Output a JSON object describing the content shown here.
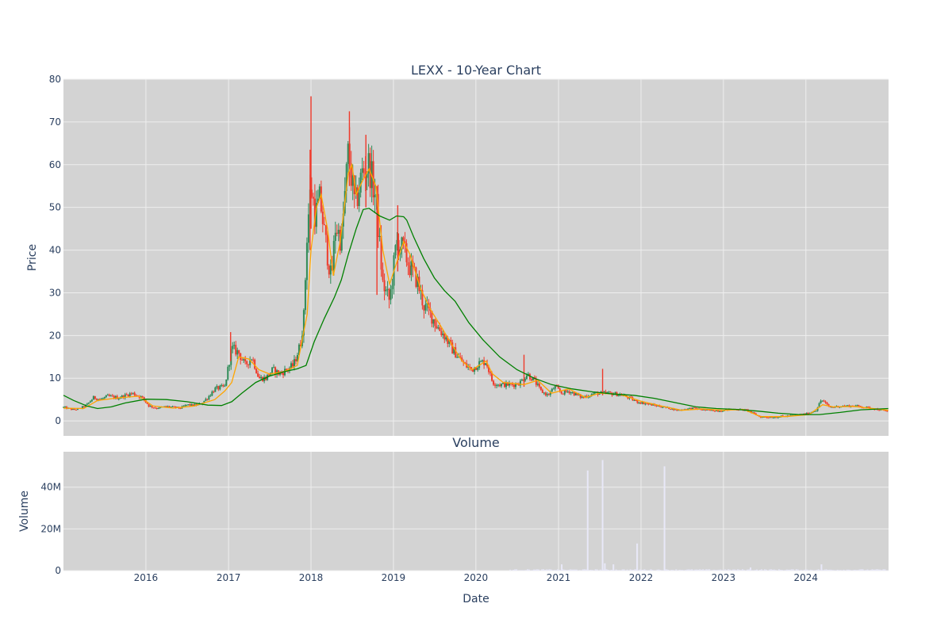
{
  "chart_data": {
    "type": "candlestick",
    "title": "LEXX - 10-Year Chart",
    "colors": {
      "plot_bg": "#d3d3d3",
      "grid": "#eeeeee",
      "increasing": "#2e8b57",
      "decreasing": "#ef3b2c",
      "ma_short": "#ffa500",
      "ma_long": "#008000",
      "volume": "#e8e8f8",
      "text": "#2a3f5f"
    },
    "price_panel": {
      "ylabel": "Price",
      "ylim": [
        -3.5,
        80
      ],
      "yticks": [
        0,
        10,
        20,
        30,
        40,
        50,
        60,
        70,
        80
      ]
    },
    "volume_panel": {
      "title": "Volume",
      "ylabel": "Volume",
      "ylim": [
        0,
        57000000
      ],
      "yticks": [
        {
          "value": 0,
          "label": "0"
        },
        {
          "value": 20000000,
          "label": "20M"
        },
        {
          "value": 40000000,
          "label": "40M"
        }
      ]
    },
    "xaxis": {
      "xlabel": "Date",
      "range": [
        "2015-01-01",
        "2025-01-01"
      ],
      "ticks": [
        {
          "date": "2016-01-01",
          "label": "2016"
        },
        {
          "date": "2017-01-01",
          "label": "2017"
        },
        {
          "date": "2018-01-01",
          "label": "2018"
        },
        {
          "date": "2019-01-01",
          "label": "2019"
        },
        {
          "date": "2020-01-01",
          "label": "2020"
        },
        {
          "date": "2021-01-01",
          "label": "2021"
        },
        {
          "date": "2022-01-01",
          "label": "2022"
        },
        {
          "date": "2023-01-01",
          "label": "2023"
        },
        {
          "date": "2024-01-01",
          "label": "2024"
        }
      ]
    },
    "price_path": [
      [
        "2015-01-01",
        3.2
      ],
      [
        "2015-02-15",
        2.6
      ],
      [
        "2015-03-15",
        2.9
      ],
      [
        "2015-04-15",
        3.8
      ],
      [
        "2015-05-15",
        5.5
      ],
      [
        "2015-06-15",
        5.0
      ],
      [
        "2015-07-15",
        5.8
      ],
      [
        "2015-09-01",
        5.4
      ],
      [
        "2015-11-01",
        6.5
      ],
      [
        "2015-12-15",
        5.5
      ],
      [
        "2016-01-15",
        3.5
      ],
      [
        "2016-02-15",
        3.0
      ],
      [
        "2016-04-01",
        3.4
      ],
      [
        "2016-06-01",
        3.0
      ],
      [
        "2016-07-01",
        3.8
      ],
      [
        "2016-08-01",
        3.6
      ],
      [
        "2016-09-01",
        4.0
      ],
      [
        "2016-10-01",
        5.5
      ],
      [
        "2016-11-01",
        7.5
      ],
      [
        "2016-12-15",
        8.0
      ],
      [
        "2017-01-15",
        17.0
      ],
      [
        "2017-02-15",
        16.0
      ],
      [
        "2017-03-15",
        13.0
      ],
      [
        "2017-04-15",
        15.0
      ],
      [
        "2017-05-15",
        10.0
      ],
      [
        "2017-06-15",
        10.0
      ],
      [
        "2017-07-15",
        12.0
      ],
      [
        "2017-08-15",
        11.0
      ],
      [
        "2017-09-15",
        12.0
      ],
      [
        "2017-10-15",
        13.0
      ],
      [
        "2017-11-15",
        18.0
      ],
      [
        "2017-12-01",
        25.0
      ],
      [
        "2017-12-15",
        45.0
      ],
      [
        "2018-01-01",
        55.0
      ],
      [
        "2018-01-20",
        48.0
      ],
      [
        "2018-02-10",
        52.0
      ],
      [
        "2018-03-01",
        44.0
      ],
      [
        "2018-04-01",
        33.0
      ],
      [
        "2018-04-20",
        46.0
      ],
      [
        "2018-05-15",
        42.0
      ],
      [
        "2018-06-15",
        63.0
      ],
      [
        "2018-07-15",
        50.0
      ],
      [
        "2018-08-15",
        58.0
      ],
      [
        "2018-09-15",
        60.0
      ],
      [
        "2018-10-15",
        52.0
      ],
      [
        "2018-11-15",
        32.0
      ],
      [
        "2018-12-15",
        28.0
      ],
      [
        "2019-01-15",
        42.0
      ],
      [
        "2019-02-15",
        40.0
      ],
      [
        "2019-03-15",
        36.0
      ],
      [
        "2019-04-15",
        33.0
      ],
      [
        "2019-05-15",
        27.0
      ],
      [
        "2019-06-15",
        25.0
      ],
      [
        "2019-07-15",
        22.0
      ],
      [
        "2019-08-15",
        20.0
      ],
      [
        "2019-09-15",
        17.0
      ],
      [
        "2019-10-15",
        15.0
      ],
      [
        "2019-11-15",
        13.0
      ],
      [
        "2019-12-15",
        12.0
      ],
      [
        "2020-01-15",
        13.5
      ],
      [
        "2020-02-15",
        14.0
      ],
      [
        "2020-03-15",
        9.0
      ],
      [
        "2020-04-15",
        8.5
      ],
      [
        "2020-06-15",
        8.5
      ],
      [
        "2020-07-15",
        9.0
      ],
      [
        "2020-08-15",
        11.0
      ],
      [
        "2020-09-15",
        9.5
      ],
      [
        "2020-10-15",
        7.0
      ],
      [
        "2020-11-15",
        6.0
      ],
      [
        "2020-12-15",
        8.0
      ],
      [
        "2021-01-15",
        6.5
      ],
      [
        "2021-02-15",
        7.0
      ],
      [
        "2021-04-15",
        5.5
      ],
      [
        "2021-06-15",
        6.5
      ],
      [
        "2021-08-15",
        6.5
      ],
      [
        "2021-10-15",
        6.0
      ],
      [
        "2021-12-15",
        4.5
      ],
      [
        "2022-02-15",
        3.8
      ],
      [
        "2022-04-15",
        3.2
      ],
      [
        "2022-06-15",
        2.5
      ],
      [
        "2022-08-15",
        3.0
      ],
      [
        "2022-10-15",
        2.5
      ],
      [
        "2022-12-15",
        2.4
      ],
      [
        "2023-02-15",
        2.8
      ],
      [
        "2023-04-15",
        2.5
      ],
      [
        "2023-06-15",
        0.9
      ],
      [
        "2023-08-15",
        0.9
      ],
      [
        "2023-10-15",
        1.2
      ],
      [
        "2023-12-15",
        1.5
      ],
      [
        "2024-01-15",
        1.8
      ],
      [
        "2024-02-15",
        2.5
      ],
      [
        "2024-03-10",
        5.0
      ],
      [
        "2024-04-15",
        3.2
      ],
      [
        "2024-06-15",
        3.5
      ],
      [
        "2024-08-15",
        3.5
      ],
      [
        "2024-10-15",
        3.0
      ],
      [
        "2024-12-31",
        2.2
      ]
    ],
    "ma_short_path": [
      [
        "2015-01-01",
        3.0
      ],
      [
        "2015-04-01",
        2.9
      ],
      [
        "2015-06-01",
        4.8
      ],
      [
        "2015-09-01",
        5.4
      ],
      [
        "2015-12-01",
        5.8
      ],
      [
        "2016-02-01",
        3.5
      ],
      [
        "2016-05-01",
        3.0
      ],
      [
        "2016-08-01",
        3.5
      ],
      [
        "2016-11-01",
        5.0
      ],
      [
        "2016-12-15",
        7.0
      ],
      [
        "2017-01-15",
        9.0
      ],
      [
        "2017-02-15",
        15.0
      ],
      [
        "2017-04-01",
        14.5
      ],
      [
        "2017-05-15",
        12.0
      ],
      [
        "2017-07-01",
        11.0
      ],
      [
        "2017-09-01",
        11.5
      ],
      [
        "2017-11-01",
        13.0
      ],
      [
        "2017-12-15",
        25.0
      ],
      [
        "2018-01-01",
        40.0
      ],
      [
        "2018-01-25",
        50.0
      ],
      [
        "2018-02-15",
        53.0
      ],
      [
        "2018-03-15",
        45.0
      ],
      [
        "2018-04-10",
        34.0
      ],
      [
        "2018-05-10",
        42.0
      ],
      [
        "2018-06-15",
        58.0
      ],
      [
        "2018-07-01",
        60.0
      ],
      [
        "2018-07-20",
        53.0
      ],
      [
        "2018-08-15",
        56.0
      ],
      [
        "2018-09-15",
        59.0
      ],
      [
        "2018-10-15",
        55.0
      ],
      [
        "2018-11-15",
        40.0
      ],
      [
        "2018-12-15",
        32.0
      ],
      [
        "2019-01-15",
        37.0
      ],
      [
        "2019-02-15",
        42.0
      ],
      [
        "2019-03-15",
        39.0
      ],
      [
        "2019-05-01",
        31.0
      ],
      [
        "2019-06-15",
        26.0
      ],
      [
        "2019-08-01",
        22.0
      ],
      [
        "2019-09-15",
        18.0
      ],
      [
        "2019-11-01",
        14.0
      ],
      [
        "2019-12-15",
        12.0
      ],
      [
        "2020-01-15",
        13.0
      ],
      [
        "2020-02-15",
        14.0
      ],
      [
        "2020-03-15",
        11.0
      ],
      [
        "2020-05-01",
        9.0
      ],
      [
        "2020-08-01",
        8.5
      ],
      [
        "2020-10-01",
        9.5
      ],
      [
        "2020-12-01",
        6.5
      ],
      [
        "2021-02-15",
        7.5
      ],
      [
        "2021-05-01",
        5.5
      ],
      [
        "2021-07-01",
        6.5
      ],
      [
        "2021-10-01",
        6.2
      ],
      [
        "2022-01-01",
        4.6
      ],
      [
        "2022-04-01",
        3.5
      ],
      [
        "2022-07-01",
        2.5
      ],
      [
        "2022-10-01",
        2.8
      ],
      [
        "2023-01-01",
        2.5
      ],
      [
        "2023-04-01",
        2.7
      ],
      [
        "2023-06-15",
        1.0
      ],
      [
        "2023-10-01",
        1.0
      ],
      [
        "2024-01-15",
        1.5
      ],
      [
        "2024-03-15",
        3.8
      ],
      [
        "2024-05-01",
        3.3
      ],
      [
        "2024-08-01",
        3.4
      ],
      [
        "2024-12-31",
        2.5
      ]
    ],
    "ma_long_path": [
      [
        "2015-01-01",
        6.0
      ],
      [
        "2015-02-15",
        4.8
      ],
      [
        "2015-04-15",
        3.5
      ],
      [
        "2015-06-01",
        2.9
      ],
      [
        "2015-08-01",
        3.3
      ],
      [
        "2015-10-01",
        4.2
      ],
      [
        "2016-01-01",
        5.1
      ],
      [
        "2016-04-01",
        5.0
      ],
      [
        "2016-07-01",
        4.5
      ],
      [
        "2016-10-01",
        3.7
      ],
      [
        "2016-12-01",
        3.6
      ],
      [
        "2017-01-15",
        4.5
      ],
      [
        "2017-03-01",
        6.5
      ],
      [
        "2017-05-01",
        9.0
      ],
      [
        "2017-07-01",
        10.5
      ],
      [
        "2017-09-01",
        11.5
      ],
      [
        "2017-11-01",
        12.2
      ],
      [
        "2017-12-10",
        13.0
      ],
      [
        "2018-01-15",
        18.5
      ],
      [
        "2018-03-01",
        24.0
      ],
      [
        "2018-04-15",
        29.0
      ],
      [
        "2018-05-15",
        33.0
      ],
      [
        "2018-06-15",
        39.0
      ],
      [
        "2018-07-20",
        45.0
      ],
      [
        "2018-08-20",
        49.5
      ],
      [
        "2018-09-15",
        49.8
      ],
      [
        "2018-11-01",
        48.0
      ],
      [
        "2018-12-15",
        47.0
      ],
      [
        "2019-01-15",
        48.0
      ],
      [
        "2019-02-15",
        47.8
      ],
      [
        "2019-03-01",
        47.0
      ],
      [
        "2019-04-01",
        43.0
      ],
      [
        "2019-05-15",
        38.0
      ],
      [
        "2019-07-01",
        33.5
      ],
      [
        "2019-08-15",
        30.5
      ],
      [
        "2019-10-01",
        28.0
      ],
      [
        "2019-12-01",
        23.0
      ],
      [
        "2020-02-01",
        19.0
      ],
      [
        "2020-04-15",
        15.0
      ],
      [
        "2020-07-01",
        12.0
      ],
      [
        "2020-09-15",
        10.0
      ],
      [
        "2020-12-01",
        8.5
      ],
      [
        "2021-03-01",
        7.5
      ],
      [
        "2021-06-01",
        6.8
      ],
      [
        "2021-09-01",
        6.3
      ],
      [
        "2021-12-01",
        6.0
      ],
      [
        "2022-03-01",
        5.3
      ],
      [
        "2022-06-01",
        4.3
      ],
      [
        "2022-09-01",
        3.3
      ],
      [
        "2022-12-01",
        2.9
      ],
      [
        "2023-03-01",
        2.7
      ],
      [
        "2023-06-01",
        2.3
      ],
      [
        "2023-09-01",
        1.8
      ],
      [
        "2023-12-01",
        1.5
      ],
      [
        "2024-03-01",
        1.5
      ],
      [
        "2024-06-01",
        2.0
      ],
      [
        "2024-09-01",
        2.6
      ],
      [
        "2024-12-31",
        2.9
      ]
    ],
    "price_spikes": [
      {
        "date": "2017-12-28",
        "high": 63.5,
        "low": 40.0
      },
      {
        "date": "2018-01-01",
        "high": 76.0,
        "low": 45.0
      },
      {
        "date": "2018-06-20",
        "high": 72.5,
        "low": 55.0
      },
      {
        "date": "2018-09-01",
        "high": 67.0,
        "low": 50.0
      },
      {
        "date": "2019-01-20",
        "high": 50.5,
        "low": 35.0
      },
      {
        "date": "2017-01-10",
        "high": 20.8,
        "low": 14.0
      },
      {
        "date": "2020-08-01",
        "high": 15.5,
        "low": 8.0
      },
      {
        "date": "2021-07-15",
        "high": 12.2,
        "low": 6.0
      },
      {
        "date": "2018-10-20",
        "high": 55.0,
        "low": 29.5
      }
    ],
    "volume_spikes": [
      {
        "date": "2021-01-15",
        "value": 3000000
      },
      {
        "date": "2021-05-10",
        "value": 48000000
      },
      {
        "date": "2021-07-15",
        "value": 53000000
      },
      {
        "date": "2021-07-25",
        "value": 3500000
      },
      {
        "date": "2021-09-01",
        "value": 3000000
      },
      {
        "date": "2021-12-15",
        "value": 13000000
      },
      {
        "date": "2022-04-15",
        "value": 50000000
      },
      {
        "date": "2023-05-01",
        "value": 1500000
      },
      {
        "date": "2024-03-10",
        "value": 3000000
      }
    ]
  }
}
